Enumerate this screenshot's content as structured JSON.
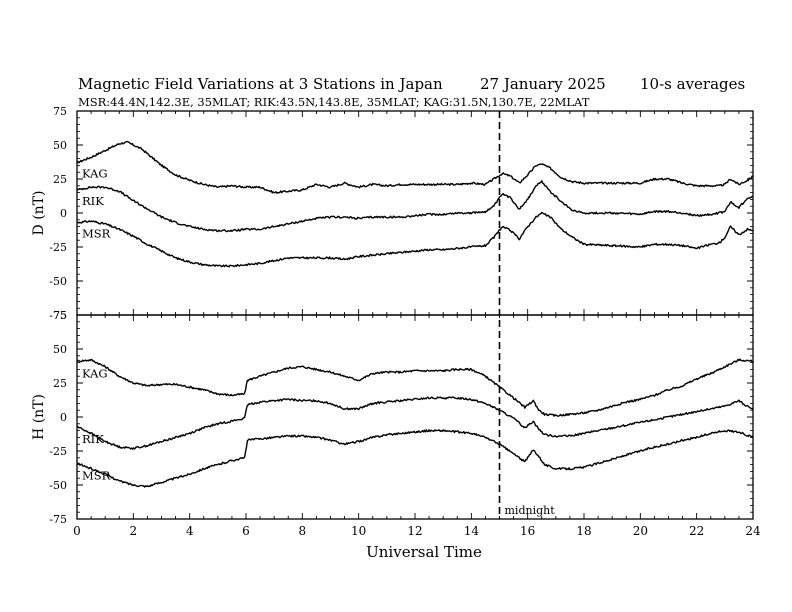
{
  "header": {
    "title": "Magnetic Field Variations at 3 Stations in Japan",
    "date": "27 January  2025",
    "averaging": "10-s averages",
    "stations_line": "MSR:44.4N,142.3E, 35MLAT;  RIK:43.5N,143.8E, 35MLAT;  KAG:31.5N,130.7E, 22MLAT"
  },
  "chart_data": [
    {
      "type": "line",
      "panel": "D",
      "ylabel": "D (nT)",
      "xlim": [
        0,
        24
      ],
      "ylim": [
        -75,
        75
      ],
      "yticks": [
        75,
        50,
        25,
        0,
        -25,
        -50,
        -75
      ],
      "xticks": [],
      "series": [
        {
          "name": "KAG",
          "x": [
            0,
            0.5,
            1,
            1.5,
            1.8,
            2.3,
            3,
            3.5,
            4,
            4.5,
            5,
            5.5,
            6,
            6.5,
            7,
            7.5,
            8,
            8.5,
            9,
            9.5,
            10,
            10.5,
            11,
            11.5,
            12,
            12.5,
            13,
            13.5,
            14,
            14.5,
            14.8,
            15.1,
            15.4,
            15.7,
            16,
            16.3,
            16.5,
            16.8,
            17.2,
            17.6,
            18,
            19,
            20,
            20.5,
            21,
            21.5,
            22,
            22.5,
            22.8,
            23,
            23.2,
            23.5,
            23.8,
            24
          ],
          "y": [
            37,
            41,
            46,
            51,
            52,
            47,
            35,
            28,
            24,
            21,
            19,
            20,
            19,
            19,
            15,
            16,
            17,
            21,
            19,
            22,
            19,
            21,
            20,
            21,
            21,
            21,
            21,
            21,
            22,
            21,
            25,
            29,
            27,
            22,
            28,
            35,
            36,
            33,
            26,
            23,
            22,
            22,
            22,
            25,
            25,
            22,
            20,
            20,
            20,
            21,
            25,
            21,
            24,
            27
          ]
        },
        {
          "name": "RIK",
          "x": [
            0,
            0.5,
            1,
            1.5,
            2,
            2.5,
            3,
            3.5,
            4,
            4.5,
            5,
            5.5,
            6,
            6.5,
            7,
            7.5,
            8,
            8.5,
            9,
            9.5,
            10,
            10.5,
            11,
            11.5,
            12,
            12.5,
            13,
            13.5,
            14,
            14.5,
            14.8,
            15.1,
            15.4,
            15.7,
            16,
            16.3,
            16.5,
            16.8,
            17.2,
            17.6,
            18,
            19,
            20,
            20.5,
            21,
            21.5,
            22,
            22.5,
            22.8,
            23,
            23.2,
            23.5,
            23.8,
            24
          ],
          "y": [
            17,
            19,
            19,
            16,
            9,
            3,
            -3,
            -7,
            -10,
            -12,
            -13,
            -13,
            -12,
            -12,
            -10,
            -8,
            -6,
            -4,
            -3,
            -3,
            -4,
            -3,
            -3,
            -3,
            -2,
            -1,
            -1,
            0,
            0,
            1,
            5,
            14,
            11,
            3,
            10,
            20,
            23,
            16,
            8,
            2,
            0,
            0,
            -1,
            1,
            1,
            0,
            -2,
            -1,
            0,
            1,
            8,
            4,
            11,
            12
          ]
        },
        {
          "name": "MSR",
          "x": [
            0,
            0.5,
            1,
            1.5,
            2,
            2.5,
            3,
            3.5,
            4,
            4.5,
            5,
            5.5,
            6,
            6.5,
            7,
            7.5,
            8,
            8.5,
            9,
            9.5,
            10,
            10.5,
            11,
            11.5,
            12,
            12.5,
            13,
            13.5,
            14,
            14.5,
            14.8,
            15.1,
            15.4,
            15.7,
            16,
            16.3,
            16.5,
            16.8,
            17.2,
            17.6,
            18,
            19,
            20,
            20.5,
            21,
            21.5,
            22,
            22.5,
            22.8,
            23,
            23.2,
            23.5,
            23.8,
            24
          ],
          "y": [
            -7,
            -6,
            -8,
            -12,
            -17,
            -23,
            -28,
            -33,
            -36,
            -38,
            -39,
            -39,
            -38,
            -37,
            -35,
            -33,
            -33,
            -33,
            -33,
            -34,
            -32,
            -31,
            -30,
            -29,
            -28,
            -27,
            -27,
            -26,
            -25,
            -24,
            -18,
            -10,
            -13,
            -19,
            -10,
            -3,
            0,
            -3,
            -12,
            -18,
            -23,
            -24,
            -25,
            -23,
            -23,
            -24,
            -26,
            -23,
            -22,
            -18,
            -10,
            -16,
            -12,
            -13
          ]
        }
      ]
    },
    {
      "type": "line",
      "panel": "H",
      "ylabel": "H (nT)",
      "xlabel": "Universal Time",
      "xlim": [
        0,
        24
      ],
      "ylim": [
        -75,
        75
      ],
      "yticks": [
        75,
        50,
        25,
        0,
        -25,
        -50,
        -75
      ],
      "xticks": [
        0,
        2,
        4,
        6,
        8,
        10,
        12,
        14,
        16,
        18,
        20,
        22,
        24
      ],
      "series": [
        {
          "name": "KAG",
          "x": [
            0,
            0.5,
            1,
            1.5,
            2,
            2.5,
            3,
            3.5,
            4,
            4.5,
            5,
            5.5,
            5.95,
            6.05,
            6.5,
            7,
            7.5,
            8,
            8.5,
            9,
            9.5,
            10,
            10.5,
            11,
            11.5,
            12,
            12.5,
            13,
            13.5,
            14,
            14.5,
            15,
            15.5,
            15.9,
            16.2,
            16.4,
            16.6,
            17,
            17.5,
            18,
            18.5,
            19,
            19.5,
            20,
            20.5,
            21,
            21.5,
            22,
            22.5,
            23,
            23.5,
            24
          ],
          "y": [
            41,
            42,
            37,
            30,
            25,
            23,
            24,
            24,
            22,
            20,
            17,
            16,
            17,
            27,
            30,
            33,
            36,
            37,
            35,
            33,
            30,
            27,
            32,
            33,
            33,
            34,
            34,
            34,
            35,
            35,
            30,
            22,
            14,
            7,
            12,
            5,
            2,
            1,
            2,
            3,
            5,
            8,
            11,
            13,
            16,
            20,
            23,
            28,
            32,
            37,
            42,
            41
          ]
        },
        {
          "name": "RIK",
          "x": [
            0,
            0.5,
            1,
            1.5,
            2,
            2.5,
            3,
            3.5,
            4,
            4.5,
            5,
            5.5,
            5.95,
            6.05,
            6.5,
            7,
            7.5,
            8,
            8.5,
            9,
            9.5,
            10,
            10.5,
            11,
            11.5,
            12,
            12.5,
            13,
            13.5,
            14,
            14.5,
            15,
            15.5,
            15.9,
            16.2,
            16.4,
            16.6,
            17,
            17.5,
            18,
            18.5,
            19,
            19.5,
            20,
            20.5,
            21,
            21.5,
            22,
            22.5,
            23,
            23.5,
            24
          ],
          "y": [
            -7,
            -12,
            -18,
            -22,
            -23,
            -21,
            -18,
            -15,
            -12,
            -8,
            -5,
            -3,
            -1,
            9,
            11,
            12,
            13,
            12,
            12,
            10,
            6,
            6,
            10,
            11,
            12,
            13,
            14,
            14,
            14,
            13,
            10,
            5,
            -1,
            -8,
            -3,
            -9,
            -13,
            -14,
            -14,
            -12,
            -10,
            -8,
            -6,
            -4,
            -2,
            0,
            2,
            4,
            6,
            8,
            12,
            5
          ]
        },
        {
          "name": "MSR",
          "x": [
            0,
            0.5,
            1,
            1.5,
            2,
            2.5,
            3,
            3.5,
            4,
            4.5,
            5,
            5.5,
            5.95,
            6.05,
            6.5,
            7,
            7.5,
            8,
            8.5,
            9,
            9.5,
            10,
            10.5,
            11,
            11.5,
            12,
            12.5,
            13,
            13.5,
            14,
            14.5,
            15,
            15.5,
            15.9,
            16.2,
            16.4,
            16.6,
            17,
            17.5,
            18,
            18.5,
            19,
            19.5,
            20,
            20.5,
            21,
            21.5,
            22,
            22.5,
            23,
            23.5,
            24
          ],
          "y": [
            -34,
            -38,
            -42,
            -47,
            -50,
            -51,
            -48,
            -45,
            -42,
            -38,
            -35,
            -32,
            -30,
            -17,
            -16,
            -15,
            -14,
            -14,
            -15,
            -17,
            -20,
            -18,
            -15,
            -13,
            -12,
            -11,
            -10,
            -10,
            -11,
            -12,
            -15,
            -20,
            -27,
            -33,
            -24,
            -29,
            -35,
            -38,
            -38,
            -37,
            -34,
            -31,
            -28,
            -25,
            -22,
            -20,
            -17,
            -15,
            -12,
            -10,
            -11,
            -15
          ]
        }
      ]
    }
  ],
  "annotations": {
    "midnight_label": "midnight",
    "midnight_ut": 15
  },
  "colors": {
    "line": "#000000",
    "background": "#ffffff"
  }
}
